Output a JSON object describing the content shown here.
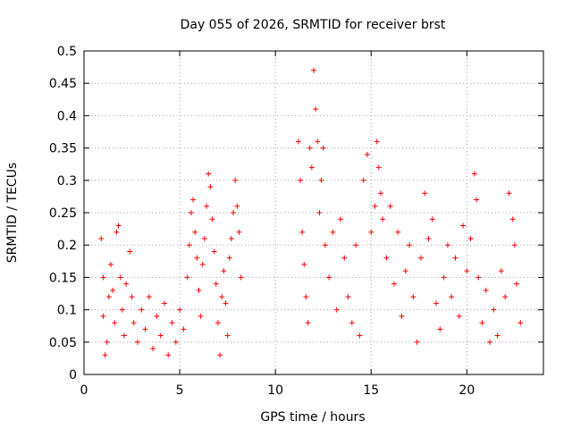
{
  "chart_data": {
    "type": "scatter",
    "title": "Day 055 of 2026, SRMTID for receiver brst",
    "xlabel": "GPS time / hours",
    "ylabel": "SRMTID / TECUs",
    "xlim": [
      0,
      24
    ],
    "ylim": [
      0,
      0.5
    ],
    "x_ticks": [
      0,
      5,
      10,
      15,
      20
    ],
    "x_tick_labels": [
      "0",
      "5",
      "10",
      "15",
      "20"
    ],
    "y_ticks": [
      0,
      0.05,
      0.1,
      0.15,
      0.2,
      0.25,
      0.3,
      0.35,
      0.4,
      0.45,
      0.5
    ],
    "y_tick_labels": [
      "0",
      "0.05",
      "0.1",
      "0.15",
      "0.2",
      "0.25",
      "0.3",
      "0.35",
      "0.4",
      "0.45",
      "0.5"
    ],
    "grid": true,
    "marker": "plus",
    "color": "#ff0000",
    "series": [
      {
        "points": [
          [
            0.9,
            0.21
          ],
          [
            1.0,
            0.15
          ],
          [
            1.0,
            0.09
          ],
          [
            1.1,
            0.03
          ],
          [
            1.2,
            0.05
          ],
          [
            1.3,
            0.12
          ],
          [
            1.4,
            0.17
          ],
          [
            1.5,
            0.13
          ],
          [
            1.6,
            0.08
          ],
          [
            1.7,
            0.22
          ],
          [
            1.8,
            0.23
          ],
          [
            1.9,
            0.15
          ],
          [
            2.0,
            0.1
          ],
          [
            2.1,
            0.06
          ],
          [
            2.2,
            0.14
          ],
          [
            2.4,
            0.19
          ],
          [
            2.5,
            0.12
          ],
          [
            2.6,
            0.08
          ],
          [
            2.8,
            0.05
          ],
          [
            3.0,
            0.1
          ],
          [
            3.2,
            0.07
          ],
          [
            3.4,
            0.12
          ],
          [
            3.6,
            0.04
          ],
          [
            3.8,
            0.09
          ],
          [
            4.0,
            0.06
          ],
          [
            4.2,
            0.11
          ],
          [
            4.4,
            0.03
          ],
          [
            4.6,
            0.08
          ],
          [
            4.8,
            0.05
          ],
          [
            5.0,
            0.1
          ],
          [
            5.2,
            0.07
          ],
          [
            5.4,
            0.15
          ],
          [
            5.5,
            0.2
          ],
          [
            5.6,
            0.25
          ],
          [
            5.7,
            0.27
          ],
          [
            5.8,
            0.22
          ],
          [
            5.9,
            0.18
          ],
          [
            6.0,
            0.13
          ],
          [
            6.1,
            0.09
          ],
          [
            6.2,
            0.17
          ],
          [
            6.3,
            0.21
          ],
          [
            6.4,
            0.26
          ],
          [
            6.5,
            0.31
          ],
          [
            6.6,
            0.29
          ],
          [
            6.7,
            0.24
          ],
          [
            6.8,
            0.19
          ],
          [
            6.9,
            0.14
          ],
          [
            7.0,
            0.08
          ],
          [
            7.1,
            0.03
          ],
          [
            7.2,
            0.12
          ],
          [
            7.3,
            0.16
          ],
          [
            7.4,
            0.11
          ],
          [
            7.5,
            0.06
          ],
          [
            7.6,
            0.18
          ],
          [
            7.7,
            0.21
          ],
          [
            7.8,
            0.25
          ],
          [
            7.9,
            0.3
          ],
          [
            8.0,
            0.26
          ],
          [
            8.1,
            0.22
          ],
          [
            8.2,
            0.15
          ],
          [
            11.2,
            0.36
          ],
          [
            11.3,
            0.3
          ],
          [
            11.4,
            0.22
          ],
          [
            11.5,
            0.17
          ],
          [
            11.6,
            0.12
          ],
          [
            11.7,
            0.08
          ],
          [
            11.8,
            0.35
          ],
          [
            11.9,
            0.32
          ],
          [
            12.0,
            0.47
          ],
          [
            12.1,
            0.41
          ],
          [
            12.2,
            0.36
          ],
          [
            12.3,
            0.25
          ],
          [
            12.4,
            0.3
          ],
          [
            12.5,
            0.35
          ],
          [
            12.6,
            0.2
          ],
          [
            12.8,
            0.15
          ],
          [
            13.0,
            0.22
          ],
          [
            13.2,
            0.1
          ],
          [
            13.4,
            0.24
          ],
          [
            13.6,
            0.18
          ],
          [
            13.8,
            0.12
          ],
          [
            14.0,
            0.08
          ],
          [
            14.2,
            0.2
          ],
          [
            14.4,
            0.06
          ],
          [
            14.6,
            0.3
          ],
          [
            14.8,
            0.34
          ],
          [
            15.0,
            0.22
          ],
          [
            15.2,
            0.26
          ],
          [
            15.3,
            0.36
          ],
          [
            15.4,
            0.32
          ],
          [
            15.5,
            0.28
          ],
          [
            15.6,
            0.24
          ],
          [
            15.8,
            0.18
          ],
          [
            16.0,
            0.26
          ],
          [
            16.2,
            0.14
          ],
          [
            16.4,
            0.22
          ],
          [
            16.6,
            0.09
          ],
          [
            16.8,
            0.16
          ],
          [
            17.0,
            0.2
          ],
          [
            17.2,
            0.12
          ],
          [
            17.4,
            0.05
          ],
          [
            17.6,
            0.18
          ],
          [
            17.8,
            0.28
          ],
          [
            18.0,
            0.21
          ],
          [
            18.2,
            0.24
          ],
          [
            18.4,
            0.11
          ],
          [
            18.6,
            0.07
          ],
          [
            18.8,
            0.15
          ],
          [
            19.0,
            0.2
          ],
          [
            19.2,
            0.12
          ],
          [
            19.4,
            0.18
          ],
          [
            19.6,
            0.09
          ],
          [
            19.8,
            0.23
          ],
          [
            20.0,
            0.16
          ],
          [
            20.2,
            0.21
          ],
          [
            20.4,
            0.31
          ],
          [
            20.5,
            0.27
          ],
          [
            20.6,
            0.15
          ],
          [
            20.8,
            0.08
          ],
          [
            21.0,
            0.13
          ],
          [
            21.2,
            0.05
          ],
          [
            21.4,
            0.1
          ],
          [
            21.6,
            0.06
          ],
          [
            21.8,
            0.16
          ],
          [
            22.0,
            0.12
          ],
          [
            22.2,
            0.28
          ],
          [
            22.4,
            0.24
          ],
          [
            22.5,
            0.2
          ],
          [
            22.6,
            0.14
          ],
          [
            22.8,
            0.08
          ]
        ]
      }
    ]
  }
}
